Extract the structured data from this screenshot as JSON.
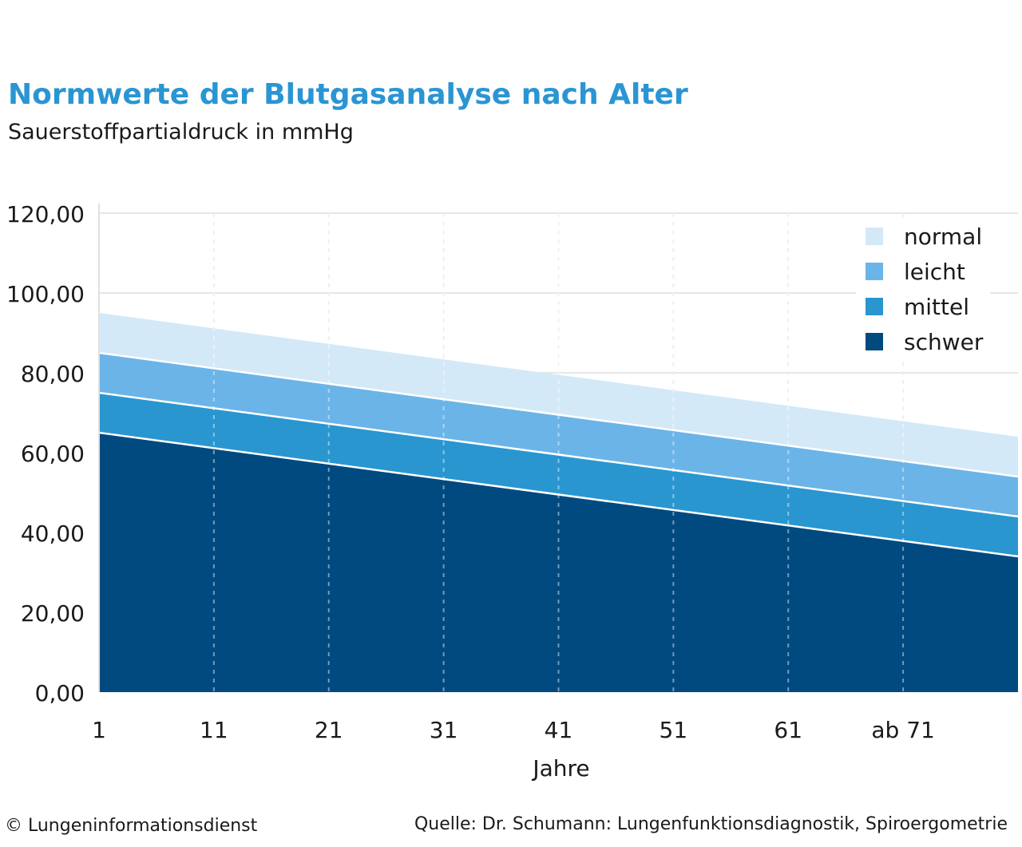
{
  "header": {
    "title": "Normwerte der Blutgasanalyse nach Alter",
    "subtitle": "Sauerstoffpartialdruck in mmHg"
  },
  "footer": {
    "copyright": "© Lungeninformationsdienst",
    "source": "Quelle: Dr. Schumann: Lungenfunktionsdiagnostik, Spiroergometrie"
  },
  "chart_data": {
    "type": "area",
    "stacked": false,
    "title": "Normwerte der Blutgasanalyse nach Alter",
    "subtitle": "Sauerstoffpartialdruck in mmHg",
    "xlabel": "Jahre",
    "ylabel": "",
    "categories": [
      "1",
      "11",
      "21",
      "31",
      "41",
      "51",
      "61",
      "ab 71"
    ],
    "x": [
      1,
      81
    ],
    "ylim": [
      0,
      120
    ],
    "yticks": [
      "0,00",
      "20,00",
      "40,00",
      "60,00",
      "80,00",
      "100,00",
      "120,00"
    ],
    "grid": true,
    "legend_position": "top-right",
    "series": [
      {
        "name": "normal",
        "color": "#d3e9f8",
        "start": 95,
        "end": 64
      },
      {
        "name": "leicht",
        "color": "#6bb4e8",
        "start": 85,
        "end": 54
      },
      {
        "name": "mittel",
        "color": "#2a96d0",
        "start": 75,
        "end": 44
      },
      {
        "name": "schwer",
        "color": "#004a7f",
        "start": 65,
        "end": 34
      }
    ]
  }
}
